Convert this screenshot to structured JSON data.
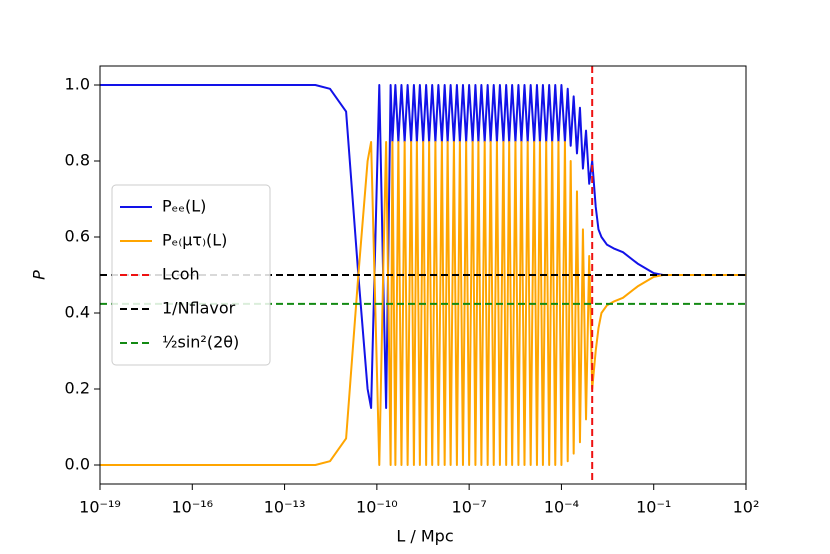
{
  "chart_data": {
    "type": "line",
    "xlabel": "L / Mpc",
    "ylabel": "P",
    "xscale": "log",
    "xlim": [
      1e-19,
      100.0
    ],
    "xticks": [
      {
        "value": 1e-19,
        "label": "10⁻¹⁹"
      },
      {
        "value": 1e-16,
        "label": "10⁻¹⁶"
      },
      {
        "value": 1e-13,
        "label": "10⁻¹³"
      },
      {
        "value": 1e-10,
        "label": "10⁻¹⁰"
      },
      {
        "value": 1e-07,
        "label": "10⁻⁷"
      },
      {
        "value": 0.0001,
        "label": "10⁻⁴"
      },
      {
        "value": 0.1,
        "label": "10⁻¹"
      },
      {
        "value": 100.0,
        "label": "10²"
      }
    ],
    "ylim": [
      -0.05,
      1.05
    ],
    "yticks": [
      {
        "value": 0,
        "label": "0.0"
      },
      0.2,
      0.4,
      0.6,
      0.8,
      {
        "value": 1,
        "label": "1.0"
      }
    ],
    "legend": "center left",
    "x": [
      1e-19,
      1e-15,
      1e-12,
      3e-12,
      1e-11,
      2.5e-11,
      5e-11,
      6.5e-11,
      9e-11,
      1.2e-10,
      1.6e-10,
      2e-10,
      2.4e-10,
      2.8e-10,
      3.2e-10,
      4e-10,
      5e-10,
      6.3e-10,
      8e-10,
      1e-09,
      1.3e-09,
      1.6e-09,
      2e-09,
      2.5e-09,
      3.2e-09,
      4e-09,
      5e-09,
      6.3e-09,
      8e-09,
      1e-08,
      1.3e-08,
      1.6e-08,
      2e-08,
      2.5e-08,
      3.2e-08,
      4e-08,
      5e-08,
      6.3e-08,
      8e-08,
      1e-07,
      1.3e-07,
      1.6e-07,
      2e-07,
      2.5e-07,
      3.2e-07,
      4e-07,
      5e-07,
      6.3e-07,
      8e-07,
      1e-06,
      1.3e-06,
      1.6e-06,
      2e-06,
      2.5e-06,
      3.2e-06,
      4e-06,
      5e-06,
      6.3e-06,
      8e-06,
      1e-05,
      1.3e-05,
      1.6e-05,
      2e-05,
      2.5e-05,
      3.2e-05,
      4e-05,
      5e-05,
      6.3e-05,
      8e-05,
      0.0001,
      0.00013,
      0.00016,
      0.0002,
      0.00025,
      0.00032,
      0.0004,
      0.0005,
      0.00063,
      0.0008,
      0.001,
      0.0013,
      0.0016,
      0.002,
      0.003,
      0.005,
      0.01,
      0.03,
      0.1,
      0.2,
      100.0
    ],
    "series": [
      {
        "name": "Pₑₑ(L)",
        "color": "#1212e8",
        "values": [
          1,
          1,
          1,
          0.99,
          0.93,
          0.5,
          0.2,
          0.15,
          0.6,
          1.0,
          0.5,
          0.15,
          0.6,
          1.0,
          0.85,
          1,
          0.85,
          1,
          0.85,
          1,
          0.85,
          1,
          0.85,
          1,
          0.85,
          1,
          0.85,
          1,
          0.85,
          1,
          0.85,
          1,
          0.85,
          1,
          0.85,
          1,
          0.85,
          1,
          0.85,
          1,
          0.85,
          1,
          0.85,
          1,
          0.85,
          1,
          0.85,
          1,
          0.85,
          1,
          0.85,
          1,
          0.85,
          1,
          0.85,
          1,
          0.85,
          1,
          0.85,
          1,
          0.85,
          1,
          0.85,
          1,
          0.85,
          1,
          0.85,
          1,
          0.85,
          1,
          0.85,
          0.99,
          0.84,
          0.97,
          0.82,
          0.94,
          0.78,
          0.88,
          0.74,
          0.8,
          0.68,
          0.62,
          0.6,
          0.58,
          0.57,
          0.56,
          0.53,
          0.505,
          0.5,
          0.5
        ]
      },
      {
        "name": "Pₑ₍μτ₎(L)",
        "color": "#ffa500",
        "values": [
          0,
          0,
          0,
          0.01,
          0.07,
          0.5,
          0.8,
          0.85,
          0.4,
          0,
          0.5,
          0.85,
          0.4,
          0,
          0.85,
          0,
          0.85,
          0,
          0.85,
          0,
          0.85,
          0,
          0.85,
          0,
          0.85,
          0,
          0.85,
          0,
          0.85,
          0,
          0.85,
          0,
          0.85,
          0,
          0.85,
          0,
          0.85,
          0,
          0.85,
          0,
          0.85,
          0,
          0.85,
          0,
          0.85,
          0,
          0.85,
          0,
          0.85,
          0,
          0.85,
          0,
          0.85,
          0,
          0.85,
          0,
          0.85,
          0,
          0.85,
          0,
          0.85,
          0,
          0.85,
          0,
          0.85,
          0,
          0.85,
          0,
          0.85,
          0,
          0.85,
          0.01,
          0.8,
          0.03,
          0.72,
          0.06,
          0.62,
          0.12,
          0.55,
          0.2,
          0.3,
          0.36,
          0.4,
          0.42,
          0.43,
          0.44,
          0.47,
          0.495,
          0.5,
          0.5
        ]
      }
    ],
    "vlines": [
      {
        "name": "Lcoh",
        "color": "#ee1111",
        "value": 0.001
      }
    ],
    "hlines": [
      {
        "name": "1/Nflavor",
        "color": "#000000",
        "value": 0.5
      },
      {
        "name": "½sin²(2θ)",
        "color": "#138a13",
        "value": 0.424
      }
    ]
  }
}
